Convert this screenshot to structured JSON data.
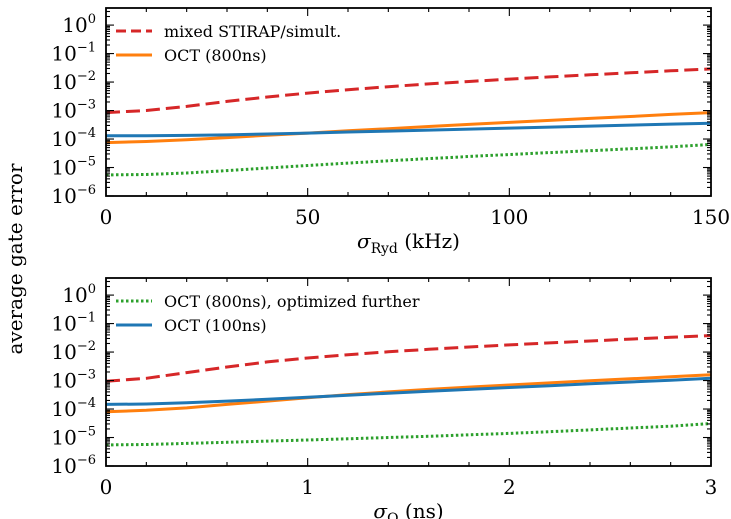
{
  "figure": {
    "shared_ylabel": "average gate error"
  },
  "chart_data": [
    {
      "type": "line",
      "xlabel": "σ_Ryd (kHz)",
      "xlabel_main": "σ",
      "xlabel_sub": "Ryd",
      "xlabel_unit": "(kHz)",
      "ylabel": "average gate error",
      "xlim": [
        0,
        150
      ],
      "ylim": [
        1e-06,
        1.0
      ],
      "y_scale": "log",
      "x_ticks": [
        0,
        50,
        100,
        150
      ],
      "x_tick_labels": [
        "0",
        "50",
        "100",
        "150"
      ],
      "y_ticks": [
        1.0,
        0.1,
        0.01,
        0.001,
        0.0001,
        1e-05,
        1e-06
      ],
      "y_tick_labels": [
        {
          "base": "10",
          "exp": "0"
        },
        {
          "base": "10",
          "exp": "−1"
        },
        {
          "base": "10",
          "exp": "−2"
        },
        {
          "base": "10",
          "exp": "−3"
        },
        {
          "base": "10",
          "exp": "−4"
        },
        {
          "base": "10",
          "exp": "−5"
        },
        {
          "base": "10",
          "exp": "−6"
        }
      ],
      "grid": false,
      "legend_position": "top-left",
      "legend": [
        {
          "label": "mixed STIRAP/simult.",
          "color": "#d62728",
          "style": "dashed"
        },
        {
          "label": "OCT (800ns)",
          "color": "#ff7f0e",
          "style": "solid"
        }
      ],
      "series": [
        {
          "key": "stirap",
          "color": "#d62728",
          "style": "dashed",
          "x": [
            0,
            10,
            20,
            30,
            40,
            50,
            60,
            70,
            80,
            90,
            100,
            110,
            120,
            130,
            140,
            150
          ],
          "y": [
            0.00085,
            0.001,
            0.0014,
            0.0021,
            0.003,
            0.0041,
            0.0054,
            0.0069,
            0.0086,
            0.0105,
            0.0127,
            0.0152,
            0.018,
            0.0212,
            0.0248,
            0.029
          ]
        },
        {
          "key": "oct800",
          "color": "#ff7f0e",
          "style": "solid",
          "x": [
            0,
            10,
            20,
            30,
            40,
            50,
            60,
            70,
            80,
            90,
            100,
            110,
            120,
            130,
            140,
            150
          ],
          "y": [
            7.5e-05,
            8.2e-05,
            9.5e-05,
            0.000112,
            0.000135,
            0.000162,
            0.000195,
            0.00023,
            0.000275,
            0.000325,
            0.000385,
            0.00045,
            0.00053,
            0.00062,
            0.00073,
            0.00085
          ]
        },
        {
          "key": "oct100",
          "color": "#1f77b4",
          "style": "solid",
          "x": [
            0,
            10,
            20,
            30,
            40,
            50,
            60,
            70,
            80,
            90,
            100,
            110,
            120,
            130,
            140,
            150
          ],
          "y": [
            0.00013,
            0.000131,
            0.000134,
            0.00014,
            0.00015,
            0.000162,
            0.000176,
            0.00019,
            0.000206,
            0.000223,
            0.000242,
            0.000262,
            0.000284,
            0.000308,
            0.000333,
            0.00036
          ]
        },
        {
          "key": "octfurther",
          "color": "#2ca02c",
          "style": "dotted",
          "x": [
            0,
            10,
            20,
            30,
            40,
            50,
            60,
            70,
            80,
            90,
            100,
            110,
            120,
            130,
            140,
            150
          ],
          "y": [
            5.5e-06,
            5.7e-06,
            6.4e-06,
            7.8e-06,
            9.6e-06,
            1.18e-05,
            1.43e-05,
            1.72e-05,
            2.05e-05,
            2.43e-05,
            2.86e-05,
            3.35e-05,
            3.9e-05,
            4.55e-05,
            5.3e-05,
            6.5e-05
          ]
        }
      ]
    },
    {
      "type": "line",
      "xlabel": "σ_Ω (ns)",
      "xlabel_main": "σ",
      "xlabel_sub": "Ω",
      "xlabel_unit": "(ns)",
      "ylabel": "average gate error",
      "xlim": [
        0,
        3
      ],
      "ylim": [
        1e-06,
        1.0
      ],
      "y_scale": "log",
      "x_ticks": [
        0,
        1,
        2,
        3
      ],
      "x_tick_labels": [
        "0",
        "1",
        "2",
        "3"
      ],
      "y_ticks": [
        1.0,
        0.1,
        0.01,
        0.001,
        0.0001,
        1e-05,
        1e-06
      ],
      "y_tick_labels": [
        {
          "base": "10",
          "exp": "0"
        },
        {
          "base": "10",
          "exp": "−1"
        },
        {
          "base": "10",
          "exp": "−2"
        },
        {
          "base": "10",
          "exp": "−3"
        },
        {
          "base": "10",
          "exp": "−4"
        },
        {
          "base": "10",
          "exp": "−5"
        },
        {
          "base": "10",
          "exp": "−6"
        }
      ],
      "grid": false,
      "legend_position": "top-left",
      "legend": [
        {
          "label": "OCT (800ns), optimized further",
          "color": "#2ca02c",
          "style": "dotted"
        },
        {
          "label": "OCT (100ns)",
          "color": "#1f77b4",
          "style": "solid"
        }
      ],
      "series": [
        {
          "key": "stirap",
          "color": "#d62728",
          "style": "dashed",
          "x": [
            0,
            0.2,
            0.4,
            0.6,
            0.8,
            1.0,
            1.2,
            1.4,
            1.6,
            1.8,
            2.0,
            2.2,
            2.4,
            2.6,
            2.8,
            3.0
          ],
          "y": [
            0.00095,
            0.0012,
            0.0019,
            0.003,
            0.0045,
            0.0062,
            0.0081,
            0.0102,
            0.0125,
            0.015,
            0.0178,
            0.021,
            0.0245,
            0.0285,
            0.033,
            0.038
          ]
        },
        {
          "key": "oct800",
          "color": "#ff7f0e",
          "style": "solid",
          "x": [
            0,
            0.2,
            0.4,
            0.6,
            0.8,
            1.0,
            1.2,
            1.4,
            1.6,
            1.8,
            2.0,
            2.2,
            2.4,
            2.6,
            2.8,
            3.0
          ],
          "y": [
            8e-05,
            9e-05,
            0.00011,
            0.000145,
            0.00019,
            0.00025,
            0.00032,
            0.0004,
            0.00049,
            0.00059,
            0.0007,
            0.00083,
            0.00098,
            0.00115,
            0.00135,
            0.0016
          ]
        },
        {
          "key": "oct100",
          "color": "#1f77b4",
          "style": "solid",
          "x": [
            0,
            0.2,
            0.4,
            0.6,
            0.8,
            1.0,
            1.2,
            1.4,
            1.6,
            1.8,
            2.0,
            2.2,
            2.4,
            2.6,
            2.8,
            3.0
          ],
          "y": [
            0.000145,
            0.00015,
            0.000165,
            0.00019,
            0.00022,
            0.00026,
            0.000305,
            0.00036,
            0.00042,
            0.00049,
            0.00057,
            0.00066,
            0.00077,
            0.00089,
            0.00103,
            0.0012
          ]
        },
        {
          "key": "octfurther",
          "color": "#2ca02c",
          "style": "dotted",
          "x": [
            0,
            0.2,
            0.4,
            0.6,
            0.8,
            1.0,
            1.2,
            1.4,
            1.6,
            1.8,
            2.0,
            2.2,
            2.4,
            2.6,
            2.8,
            3.0
          ],
          "y": [
            5.5e-06,
            5.7e-06,
            6.2e-06,
            6.8e-06,
            7.5e-06,
            8.2e-06,
            9e-06,
            1e-05,
            1.1e-05,
            1.25e-05,
            1.4e-05,
            1.6e-05,
            1.85e-05,
            2.15e-05,
            2.5e-05,
            3.1e-05
          ]
        }
      ]
    }
  ]
}
